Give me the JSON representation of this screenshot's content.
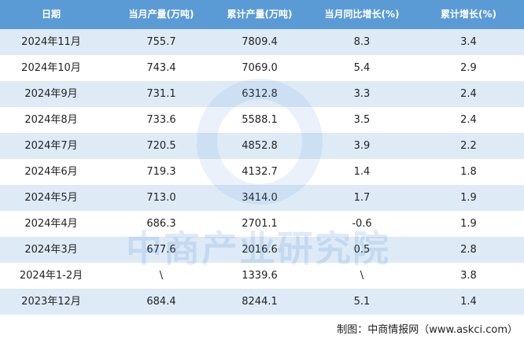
{
  "table": {
    "header": [
      "日期",
      "当月产量(万吨)",
      "累计产量(万吨)",
      "当月同比增长(%)",
      "累计增长(%)"
    ],
    "rows": [
      [
        "2024年11月",
        "755.7",
        "7809.4",
        "8.3",
        "3.4"
      ],
      [
        "2024年10月",
        "743.4",
        "7069.0",
        "5.4",
        "2.9"
      ],
      [
        "2024年9月",
        "731.1",
        "6312.8",
        "3.3",
        "2.4"
      ],
      [
        "2024年8月",
        "733.6",
        "5588.1",
        "3.5",
        "2.4"
      ],
      [
        "2024年7月",
        "720.5",
        "4852.8",
        "3.9",
        "2.2"
      ],
      [
        "2024年6月",
        "719.3",
        "4132.7",
        "1.4",
        "1.8"
      ],
      [
        "2024年5月",
        "713.0",
        "3414.0",
        "1.7",
        "1.9"
      ],
      [
        "2024年4月",
        "686.3",
        "2701.1",
        "-0.6",
        "1.9"
      ],
      [
        "2024年3月",
        "677.6",
        "2016.6",
        "0.5",
        "2.8"
      ],
      [
        "2024年1-2月",
        "\\",
        "1339.6",
        "\\",
        "3.8"
      ],
      [
        "2023年12月",
        "684.4",
        "8244.1",
        "5.1",
        "1.4"
      ]
    ]
  },
  "watermark": "中商产业研究院",
  "footer": "制图：中商情报网（www.askci.com）"
}
